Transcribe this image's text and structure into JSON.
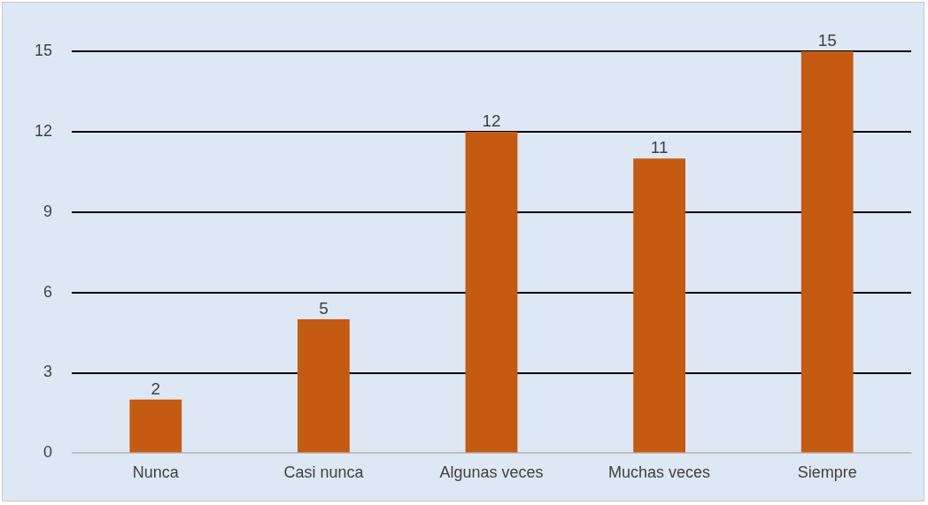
{
  "chart_data": {
    "type": "bar",
    "categories": [
      "Nunca",
      "Casi nunca",
      "Algunas veces",
      "Muchas veces",
      "Siempre"
    ],
    "values": [
      2,
      5,
      12,
      11,
      15
    ],
    "color": "#c55a11",
    "ylim": [
      0,
      15
    ],
    "yticks": [
      0,
      3,
      6,
      9,
      12,
      15
    ],
    "grid": "y",
    "data_labels": true,
    "legend": false
  }
}
